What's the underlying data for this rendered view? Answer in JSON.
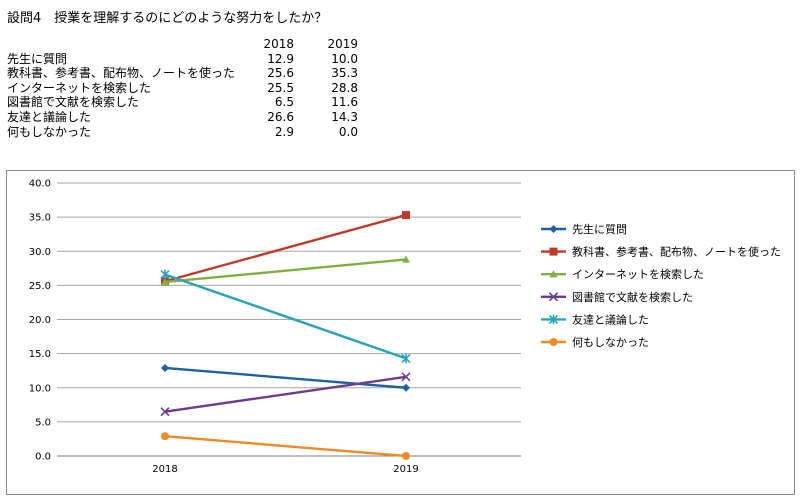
{
  "question_title": "設問4　授業を理解するのにどのような努力をしたか？",
  "table": {
    "headers": [
      "",
      "2018",
      "2019"
    ],
    "rows": [
      {
        "label": "先生に質問",
        "v2018": "12.9",
        "v2019": "10.0"
      },
      {
        "label": "教科書、参考書、配布物、ノートを使った",
        "v2018": "25.6",
        "v2019": "35.3"
      },
      {
        "label": "インターネットを検索した",
        "v2018": "25.5",
        "v2019": "28.8"
      },
      {
        "label": "図書館で文献を検索した",
        "v2018": "6.5",
        "v2019": "11.6"
      },
      {
        "label": "友達と議論した",
        "v2018": "26.6",
        "v2019": "14.3"
      },
      {
        "label": "何もしなかった",
        "v2018": "2.9",
        "v2019": "0.0"
      }
    ]
  },
  "chart_data": {
    "type": "line",
    "title": "",
    "xlabel": "",
    "ylabel": "",
    "x": [
      "2018",
      "2019"
    ],
    "ylim": [
      0,
      40
    ],
    "yticks": [
      "0.0",
      "5.0",
      "10.0",
      "15.0",
      "20.0",
      "25.0",
      "30.0",
      "35.0",
      "40.0"
    ],
    "grid": true,
    "legend": "right",
    "series": [
      {
        "name": "先生に質問",
        "values": [
          12.9,
          10.0
        ],
        "color": "#1f5fa8",
        "marker": "diamond"
      },
      {
        "name": "教科書、参考書、配布物、ノートを使った",
        "values": [
          25.6,
          35.3
        ],
        "color": "#c0392b",
        "marker": "square"
      },
      {
        "name": "インターネットを検索した",
        "values": [
          25.5,
          28.8
        ],
        "color": "#7fb03c",
        "marker": "triangle"
      },
      {
        "name": "図書館で文献を検索した",
        "values": [
          6.5,
          11.6
        ],
        "color": "#6a3d8f",
        "marker": "x"
      },
      {
        "name": "友達と議論した",
        "values": [
          26.6,
          14.3
        ],
        "color": "#2aa3b8",
        "marker": "star"
      },
      {
        "name": "何もしなかった",
        "values": [
          2.9,
          0.0
        ],
        "color": "#f08a24",
        "marker": "circle"
      }
    ]
  }
}
